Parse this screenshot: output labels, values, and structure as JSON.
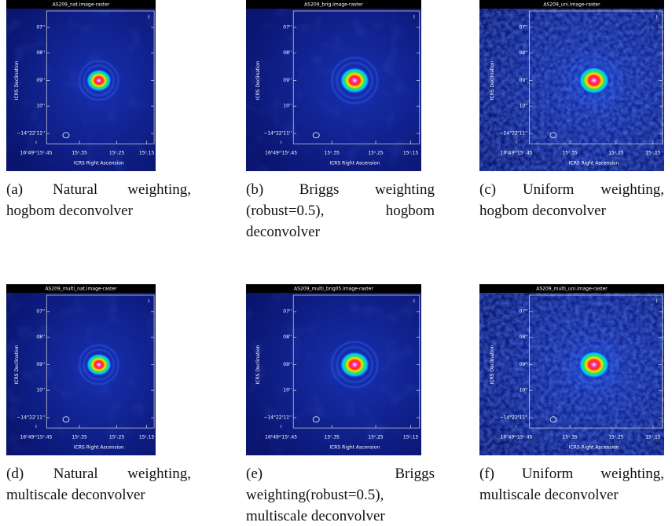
{
  "panels": [
    {
      "title": "AS209_nat.image-raster",
      "caption": "(a) Natural weighting, hogbom deconvolver",
      "y_axis_label": "ICRS Declination",
      "x_axis_label": "ICRS Right Ascension",
      "stokes": "I",
      "yticks": [
        "07''",
        "08''",
        "09''",
        "10''",
        "−14°22'11''"
      ],
      "xticks": [
        "16ʰ49ᵐ15ˢ.45",
        "15ˢ.35",
        "15ˢ.25",
        "15ˢ.15"
      ]
    },
    {
      "title": "AS209_brig.image-raster",
      "caption": "(b) Briggs weighting (robust=0.5), hogbom deconvolver",
      "y_axis_label": "ICRS Declination",
      "x_axis_label": "ICRS Right Ascension",
      "stokes": "I",
      "yticks": [
        "07''",
        "08''",
        "09''",
        "10''",
        "−14°22'11''"
      ],
      "xticks": [
        "16ʰ49ᵐ15ˢ.45",
        "15ˢ.35",
        "15ˢ.25",
        "15ˢ.15"
      ]
    },
    {
      "title": "AS209_uni.image-raster",
      "caption": "(c) Uniform weighting, hogbom deconvolver",
      "y_axis_label": "ICRS Declination",
      "x_axis_label": "ICRS Right Ascension",
      "stokes": "I",
      "yticks": [
        "07''",
        "08''",
        "09''",
        "10''",
        "−14°22'11''"
      ],
      "xticks": [
        "16ʰ49ᵐ15ˢ.45",
        "15ˢ.35",
        "15ˢ.25",
        "15ˢ.15"
      ]
    },
    {
      "title": "AS209_multi_nat.image-raster",
      "caption": "(d) Natural weighting, multiscale deconvolver",
      "y_axis_label": "ICRS Declination",
      "x_axis_label": "ICRS Right Ascension",
      "stokes": "I",
      "yticks": [
        "07''",
        "08''",
        "09''",
        "10''",
        "−14°22'11''"
      ],
      "xticks": [
        "16ʰ49ᵐ15ˢ.45",
        "15ˢ.35",
        "15ˢ.25",
        "15ˢ.15"
      ]
    },
    {
      "title": "AS209_multi_brig05.image-raster",
      "caption": "(e) Briggs weighting(robust=0.5), multiscale deconvolver",
      "y_axis_label": "ICRS Declination",
      "x_axis_label": "ICRS Right Ascension",
      "stokes": "I",
      "yticks": [
        "07''",
        "08''",
        "09''",
        "10''",
        "−14°22'11''"
      ],
      "xticks": [
        "16ʰ49ᵐ15ˢ.45",
        "15ˢ.35",
        "15ˢ.25",
        "15ˢ.15"
      ]
    },
    {
      "title": "AS209_multi_uni.image-raster",
      "caption": "(f) Uniform weighting, multiscale deconvolver",
      "y_axis_label": "ICRS Declination",
      "x_axis_label": "ICRS Right Ascension",
      "stokes": "I",
      "yticks": [
        "07''",
        "08''",
        "09''",
        "10''",
        "−14°22'11''"
      ],
      "xticks": [
        "16ʰ49ᵐ15ˢ.45",
        "15ˢ.35",
        "15ˢ.25",
        "15ˢ.15"
      ]
    }
  ]
}
